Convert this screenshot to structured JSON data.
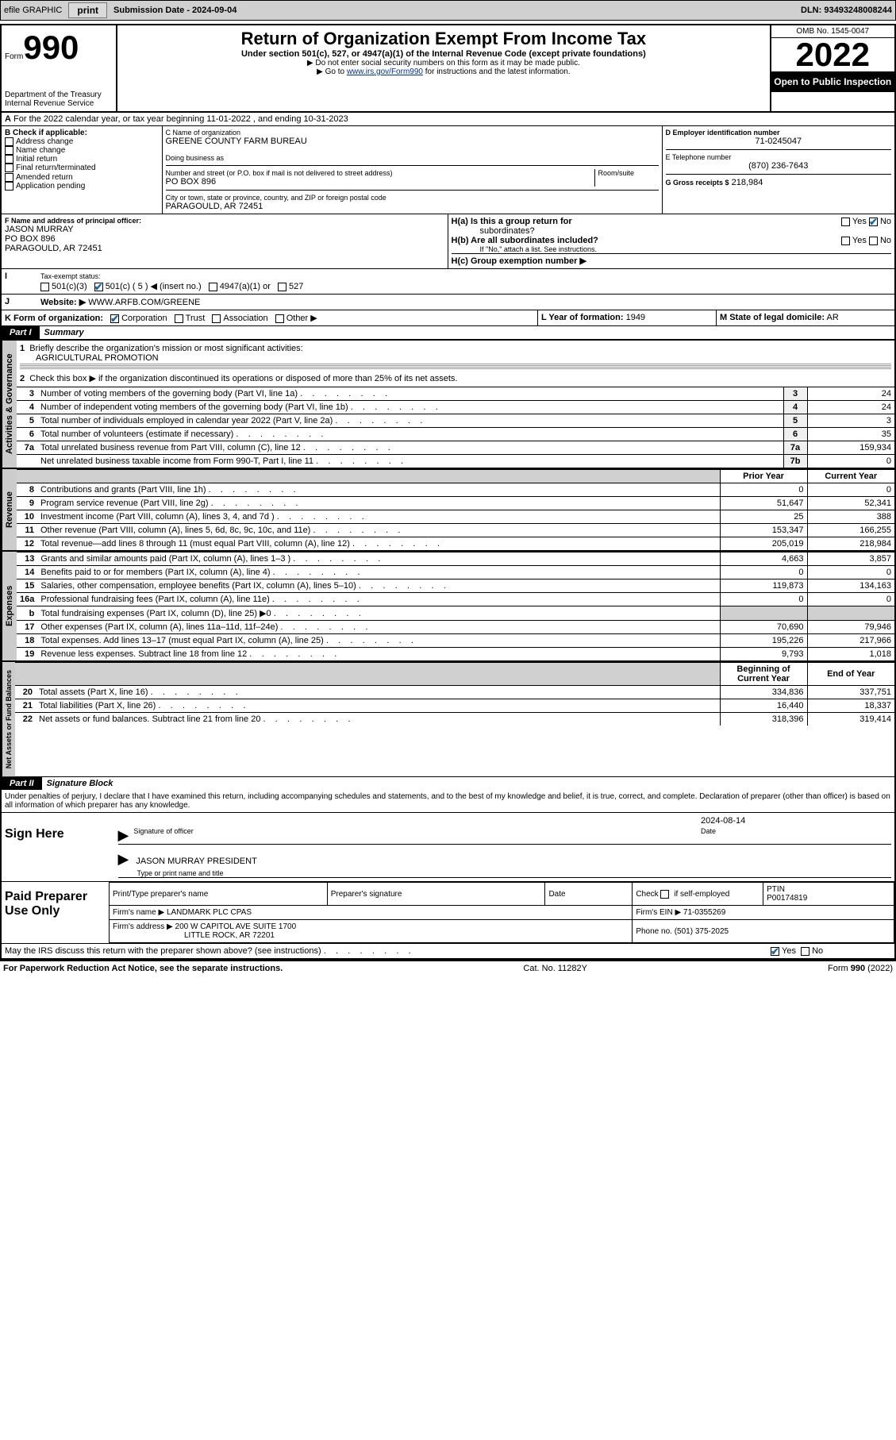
{
  "topbar": {
    "efile": "efile GRAPHIC",
    "print": "print",
    "submission": "Submission Date - 2024-09-04",
    "dln": "DLN: 93493248008244"
  },
  "header": {
    "form_word": "Form",
    "form_num": "990",
    "dept": "Department of the Treasury",
    "irs": "Internal Revenue Service",
    "title": "Return of Organization Exempt From Income Tax",
    "subtitle": "Under section 501(c), 527, or 4947(a)(1) of the Internal Revenue Code (except private foundations)",
    "note1": "▶ Do not enter social security numbers on this form as it may be made public.",
    "note2_pre": "▶ Go to ",
    "note2_link": "www.irs.gov/Form990",
    "note2_post": " for instructions and the latest information.",
    "omb": "OMB No. 1545-0047",
    "year": "2022",
    "inspection": "Open to Public Inspection"
  },
  "section_a": {
    "text": "For the 2022 calendar year, or tax year beginning 11-01-2022    , and ending 10-31-2023",
    "label_a": "A"
  },
  "col_b": {
    "heading": "B Check if applicable:",
    "items": [
      "Address change",
      "Name change",
      "Initial return",
      "Final return/terminated",
      "Amended return",
      "Application pending"
    ]
  },
  "col_c": {
    "name_label": "C Name of organization",
    "name": "GREENE COUNTY FARM BUREAU",
    "dba_label": "Doing business as",
    "addr_label": "Number and street (or P.O. box if mail is not delivered to street address)",
    "room_label": "Room/suite",
    "addr": "PO BOX 896",
    "city_label": "City or town, state or province, country, and ZIP or foreign postal code",
    "city": "PARAGOULD, AR  72451"
  },
  "col_d": {
    "ein_label": "D Employer identification number",
    "ein": "71-0245047",
    "phone_label": "E Telephone number",
    "phone": "(870) 236-7643",
    "gross_label": "G Gross receipts $",
    "gross": "218,984"
  },
  "row_f": {
    "f_label": "F Name and address of principal officer:",
    "f_name": "JASON MURRAY",
    "f_addr1": "PO BOX 896",
    "f_addr2": "PARAGOULD, AR  72451",
    "ha_label": "H(a)  Is this a group return for",
    "ha_sub": "subordinates?",
    "hb_label": "H(b)  Are all subordinates included?",
    "hb_note": "If \"No,\" attach a list. See instructions.",
    "hc_label": "H(c)  Group exemption number ▶",
    "yes": "Yes",
    "no": "No"
  },
  "row_i": {
    "label": "Tax-exempt status:",
    "i": "I",
    "c3": "501(c)(3)",
    "c_other": "501(c) ( 5 ) ◀ (insert no.)",
    "a1": "4947(a)(1) or",
    "s527": "527"
  },
  "row_j": {
    "label": "Website: ▶",
    "j": "J",
    "value": "WWW.ARFB.COM/GREENE"
  },
  "row_k": {
    "label": "K Form of organization:",
    "corp": "Corporation",
    "trust": "Trust",
    "assoc": "Association",
    "other": "Other ▶",
    "l_label": "L Year of formation:",
    "l_val": "1949",
    "m_label": "M State of legal domicile:",
    "m_val": "AR"
  },
  "part1": {
    "part": "Part I",
    "title": "Summary",
    "line1_label": "Briefly describe the organization's mission or most significant activities:",
    "line1_val": "AGRICULTURAL PROMOTION",
    "line2": "Check this box ▶      if the organization discontinued its operations or disposed of more than 25% of its net assets.",
    "tabs": {
      "gov": "Activities & Governance",
      "rev": "Revenue",
      "exp": "Expenses",
      "net": "Net Assets or Fund Balances"
    },
    "headers": {
      "prior": "Prior Year",
      "current": "Current Year",
      "begin": "Beginning of Current Year",
      "end": "End of Year"
    },
    "gov_rows": [
      {
        "n": "3",
        "label": "Number of voting members of the governing body (Part VI, line 1a)",
        "box": "3",
        "val": "24"
      },
      {
        "n": "4",
        "label": "Number of independent voting members of the governing body (Part VI, line 1b)",
        "box": "4",
        "val": "24"
      },
      {
        "n": "5",
        "label": "Total number of individuals employed in calendar year 2022 (Part V, line 2a)",
        "box": "5",
        "val": "3"
      },
      {
        "n": "6",
        "label": "Total number of volunteers (estimate if necessary)",
        "box": "6",
        "val": "35"
      },
      {
        "n": "7a",
        "label": "Total unrelated business revenue from Part VIII, column (C), line 12",
        "box": "7a",
        "val": "159,934"
      },
      {
        "n": "",
        "label": "Net unrelated business taxable income from Form 990-T, Part I, line 11",
        "box": "7b",
        "val": "0"
      }
    ],
    "rev_rows": [
      {
        "n": "8",
        "label": "Contributions and grants (Part VIII, line 1h)",
        "prior": "0",
        "curr": "0"
      },
      {
        "n": "9",
        "label": "Program service revenue (Part VIII, line 2g)",
        "prior": "51,647",
        "curr": "52,341"
      },
      {
        "n": "10",
        "label": "Investment income (Part VIII, column (A), lines 3, 4, and 7d )",
        "prior": "25",
        "curr": "388"
      },
      {
        "n": "11",
        "label": "Other revenue (Part VIII, column (A), lines 5, 6d, 8c, 9c, 10c, and 11e)",
        "prior": "153,347",
        "curr": "166,255"
      },
      {
        "n": "12",
        "label": "Total revenue—add lines 8 through 11 (must equal Part VIII, column (A), line 12)",
        "prior": "205,019",
        "curr": "218,984"
      }
    ],
    "exp_rows": [
      {
        "n": "13",
        "label": "Grants and similar amounts paid (Part IX, column (A), lines 1–3 )",
        "prior": "4,663",
        "curr": "3,857"
      },
      {
        "n": "14",
        "label": "Benefits paid to or for members (Part IX, column (A), line 4)",
        "prior": "0",
        "curr": "0"
      },
      {
        "n": "15",
        "label": "Salaries, other compensation, employee benefits (Part IX, column (A), lines 5–10)",
        "prior": "119,873",
        "curr": "134,163"
      },
      {
        "n": "16a",
        "label": "Professional fundraising fees (Part IX, column (A), line 11e)",
        "prior": "0",
        "curr": "0"
      },
      {
        "n": "b",
        "label": "Total fundraising expenses (Part IX, column (D), line 25) ▶0",
        "prior": "",
        "curr": "",
        "shade": true
      },
      {
        "n": "17",
        "label": "Other expenses (Part IX, column (A), lines 11a–11d, 11f–24e)",
        "prior": "70,690",
        "curr": "79,946"
      },
      {
        "n": "18",
        "label": "Total expenses. Add lines 13–17 (must equal Part IX, column (A), line 25)",
        "prior": "195,226",
        "curr": "217,966"
      },
      {
        "n": "19",
        "label": "Revenue less expenses. Subtract line 18 from line 12",
        "prior": "9,793",
        "curr": "1,018"
      }
    ],
    "net_rows": [
      {
        "n": "20",
        "label": "Total assets (Part X, line 16)",
        "prior": "334,836",
        "curr": "337,751"
      },
      {
        "n": "21",
        "label": "Total liabilities (Part X, line 26)",
        "prior": "16,440",
        "curr": "18,337"
      },
      {
        "n": "22",
        "label": "Net assets or fund balances. Subtract line 21 from line 20",
        "prior": "318,396",
        "curr": "319,414"
      }
    ]
  },
  "part2": {
    "part": "Part II",
    "title": "Signature Block",
    "decl": "Under penalties of perjury, I declare that I have examined this return, including accompanying schedules and statements, and to the best of my knowledge and belief, it is true, correct, and complete. Declaration of preparer (other than officer) is based on all information of which preparer has any knowledge."
  },
  "sign": {
    "here": "Sign Here",
    "sig_label": "Signature of officer",
    "date_label": "Date",
    "date": "2024-08-14",
    "name": "JASON MURRAY PRESIDENT",
    "name_label": "Type or print name and title"
  },
  "prep": {
    "title": "Paid Preparer Use Only",
    "h1": "Print/Type preparer's name",
    "h2": "Preparer's signature",
    "h3": "Date",
    "h4_check": "Check",
    "h4_if": "if self-employed",
    "h5": "PTIN",
    "ptin": "P00174819",
    "firm_name_label": "Firm's name    ▶",
    "firm_name": "LANDMARK PLC CPAS",
    "firm_ein_label": "Firm's EIN ▶",
    "firm_ein": "71-0355269",
    "firm_addr_label": "Firm's address ▶",
    "firm_addr1": "200 W CAPITOL AVE SUITE 1700",
    "firm_addr2": "LITTLE ROCK, AR  72201",
    "phone_label": "Phone no.",
    "phone": "(501) 375-2025"
  },
  "footer": {
    "discuss": "May the IRS discuss this return with the preparer shown above? (see instructions)",
    "yes": "Yes",
    "no": "No",
    "pra": "For Paperwork Reduction Act Notice, see the separate instructions.",
    "cat": "Cat. No. 11282Y",
    "form": "Form 990 (2022)"
  }
}
